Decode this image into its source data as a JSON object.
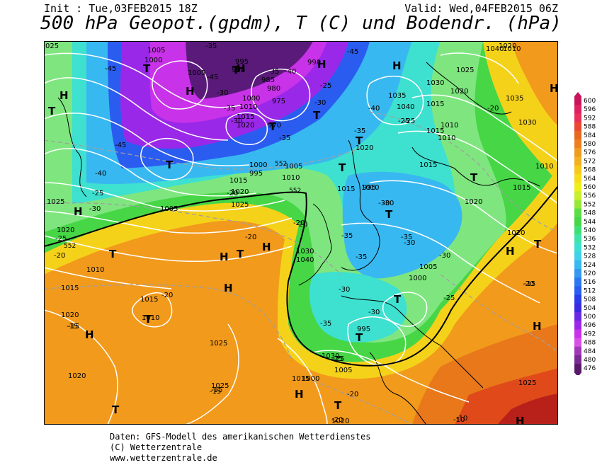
{
  "header": {
    "init": "Init : Tue,03FEB2015 18Z",
    "valid": "Valid: Wed,04FEB2015 06Z",
    "title": "500 hPa Geopot.(gpdm), T (C) und Bodendr. (hPa)"
  },
  "colors": {
    "bg_orange": "#f29a1c",
    "bg_dark_orange": "#e8781a",
    "bg_yellow": "#f5d21a",
    "bg_green": "#46d646",
    "bg_lightgreen": "#7fe67f",
    "bg_cyan": "#3ee0d0",
    "bg_lightblue": "#38b8f0",
    "bg_blue": "#2a5cf0",
    "bg_purple": "#9a28e8",
    "bg_magenta": "#c832e8",
    "bg_darkpurple": "#5a1a7a",
    "bg_red": "#e04a1a",
    "bg_darkred": "#b8201a",
    "isobar": "#ffffff",
    "isotherm": "#a0a0a0",
    "thickness_line": "#000000"
  },
  "scale": {
    "values": [
      "600",
      "596",
      "592",
      "588",
      "584",
      "580",
      "576",
      "572",
      "568",
      "564",
      "560",
      "556",
      "552",
      "548",
      "544",
      "540",
      "536",
      "532",
      "528",
      "524",
      "520",
      "516",
      "512",
      "508",
      "504",
      "500",
      "496",
      "492",
      "488",
      "484",
      "480",
      "476"
    ],
    "colors": [
      "#c8145a",
      "#e02060",
      "#e8305a",
      "#ea4830",
      "#e86820",
      "#ec8020",
      "#f09a20",
      "#f4b020",
      "#f6c81c",
      "#f8dc1c",
      "#eef01c",
      "#c8f02c",
      "#96e836",
      "#5ade46",
      "#46d646",
      "#3ee074",
      "#40e4a8",
      "#3ee0d0",
      "#40d0ea",
      "#38b8f0",
      "#3498f0",
      "#2a78f0",
      "#2a5cf0",
      "#2a3ce8",
      "#3a2ae0",
      "#6a2ae4",
      "#9a28e8",
      "#c832e8",
      "#d850e8",
      "#a038b8",
      "#7a2a90",
      "#5a1a6a"
    ]
  },
  "pressure_labels": [
    "025",
    "1005",
    "1000",
    "995",
    "990",
    "1005",
    "1000",
    "1010",
    "1015",
    "1020",
    "985",
    "980",
    "975",
    "970",
    "990",
    "1040",
    "1035",
    "1030",
    "1025",
    "1020",
    "1015",
    "1010",
    "1035",
    "1030",
    "1010",
    "1015",
    "1025",
    "1020",
    "1015",
    "1010",
    "1010",
    "1015",
    "1020",
    "1025",
    "1005",
    "1000",
    "995",
    "1000",
    "995",
    "1005",
    "1010",
    "1015",
    "1020",
    "1025",
    "1030",
    "1040",
    "1020",
    "1010",
    "1015",
    "1025",
    "1020",
    "1015",
    "1025",
    "1020",
    "1020",
    "1030",
    "1005",
    "1015",
    "1020",
    "1005",
    "1000",
    "995",
    "1010",
    "1015",
    "1010",
    "1040",
    "1020"
  ],
  "temp_labels": [
    "-35",
    "-45",
    "-40",
    "-45",
    "-40",
    "-45",
    "-35",
    "-30",
    "-35",
    "-25",
    "-30",
    "-35",
    "-30",
    "-45",
    "-40",
    "-35",
    "-25",
    "-20",
    "-25",
    "-30",
    "-25",
    "-20",
    "-30",
    "-35",
    "-30",
    "-35",
    "-30",
    "-25",
    "-20",
    "-15",
    "-20",
    "-15",
    "-20",
    "-20",
    "-30",
    "-35",
    "-30",
    "-25",
    "-20",
    "-15",
    "-10",
    "-20",
    "-25",
    "-20",
    "-15",
    "-10",
    "-25",
    "-35",
    "-30",
    "-20",
    "-15"
  ],
  "highs": [
    "H",
    "H",
    "H",
    "H",
    "H",
    "H",
    "H",
    "H",
    "H",
    "H",
    "H",
    "H",
    "H",
    "H",
    "H"
  ],
  "lows": [
    "T",
    "T",
    "T",
    "T",
    "T",
    "T",
    "T",
    "T",
    "T",
    "T",
    "T",
    "T",
    "T",
    "T",
    "T",
    "T",
    "T",
    "T"
  ],
  "thickness_labels": [
    "552",
    "552",
    "552"
  ],
  "footer": {
    "line1": "Daten: GFS-Modell des amerikanischen Wetterdienstes",
    "line2": "(C) Wetterzentrale",
    "line3": "www.wetterzentrale.de"
  }
}
